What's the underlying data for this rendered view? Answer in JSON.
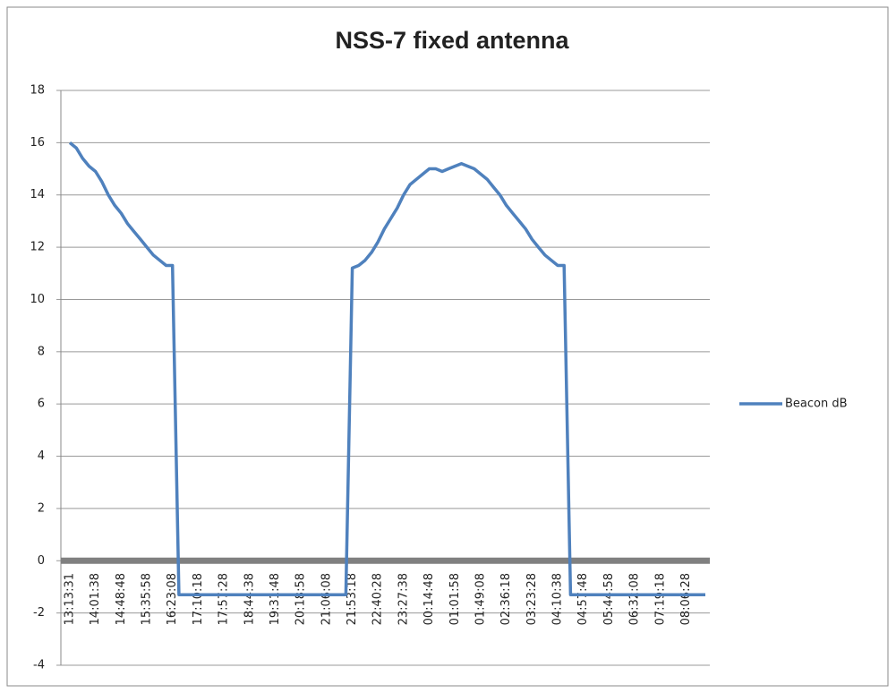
{
  "chart_data": {
    "type": "line",
    "title": "NSS-7 fixed antenna",
    "categories": [
      "13:13:31",
      null,
      null,
      null,
      "14:01:38",
      null,
      null,
      null,
      "14:48:48",
      null,
      null,
      null,
      "15:35:58",
      null,
      null,
      null,
      "16:23:08",
      null,
      null,
      null,
      "17:10:18",
      null,
      null,
      null,
      "17:57:28",
      null,
      null,
      null,
      "18:44:38",
      null,
      null,
      null,
      "19:31:48",
      null,
      null,
      null,
      "20:18:58",
      null,
      null,
      null,
      "21:06:08",
      null,
      null,
      null,
      "21:53:18",
      null,
      null,
      null,
      "22:40:28",
      null,
      null,
      null,
      "23:27:38",
      null,
      null,
      null,
      "00:14:48",
      null,
      null,
      null,
      "01:01:58",
      null,
      null,
      null,
      "01:49:08",
      null,
      null,
      null,
      "02:36:18",
      null,
      null,
      null,
      "03:23:28",
      null,
      null,
      null,
      "04:10:38",
      null,
      null,
      null,
      "04:57:48",
      null,
      null,
      null,
      "05:44:58",
      null,
      null,
      null,
      "06:32:08",
      null,
      null,
      null,
      "07:19:18",
      null,
      null,
      null,
      "08:06:28",
      null,
      null,
      null
    ],
    "series": [
      {
        "name": "Beacon dB",
        "color": "#4f81bd",
        "values": [
          16.0,
          15.8,
          15.4,
          15.1,
          14.9,
          14.5,
          14.0,
          13.6,
          13.3,
          12.9,
          12.6,
          12.3,
          12.0,
          11.7,
          11.5,
          11.3,
          11.3,
          -1.3,
          -1.3,
          -1.3,
          -1.3,
          -1.3,
          -1.3,
          -1.3,
          -1.3,
          -1.3,
          -1.3,
          -1.3,
          -1.3,
          -1.3,
          -1.3,
          -1.3,
          -1.3,
          -1.3,
          -1.3,
          -1.3,
          -1.3,
          -1.3,
          -1.3,
          -1.3,
          -1.3,
          -1.3,
          -1.3,
          -1.3,
          11.2,
          11.3,
          11.5,
          11.8,
          12.2,
          12.7,
          13.1,
          13.5,
          14.0,
          14.4,
          14.6,
          14.8,
          15.0,
          15.0,
          14.9,
          15.0,
          15.1,
          15.2,
          15.1,
          15.0,
          14.8,
          14.6,
          14.3,
          14.0,
          13.6,
          13.3,
          13.0,
          12.7,
          12.3,
          12.0,
          11.7,
          11.5,
          11.3,
          11.3,
          -1.3,
          -1.3,
          -1.3,
          -1.3,
          -1.3,
          -1.3,
          -1.3,
          -1.3,
          -1.3,
          -1.3,
          -1.3,
          -1.3,
          -1.3,
          -1.3,
          -1.3,
          -1.3,
          -1.3,
          -1.3,
          -1.3,
          -1.3,
          -1.3,
          -1.3
        ]
      }
    ],
    "ylim": [
      -4,
      18
    ],
    "yticks": [
      -4,
      -2,
      0,
      2,
      4,
      6,
      8,
      10,
      12,
      14,
      16,
      18
    ],
    "grid": true,
    "legend": "right"
  }
}
